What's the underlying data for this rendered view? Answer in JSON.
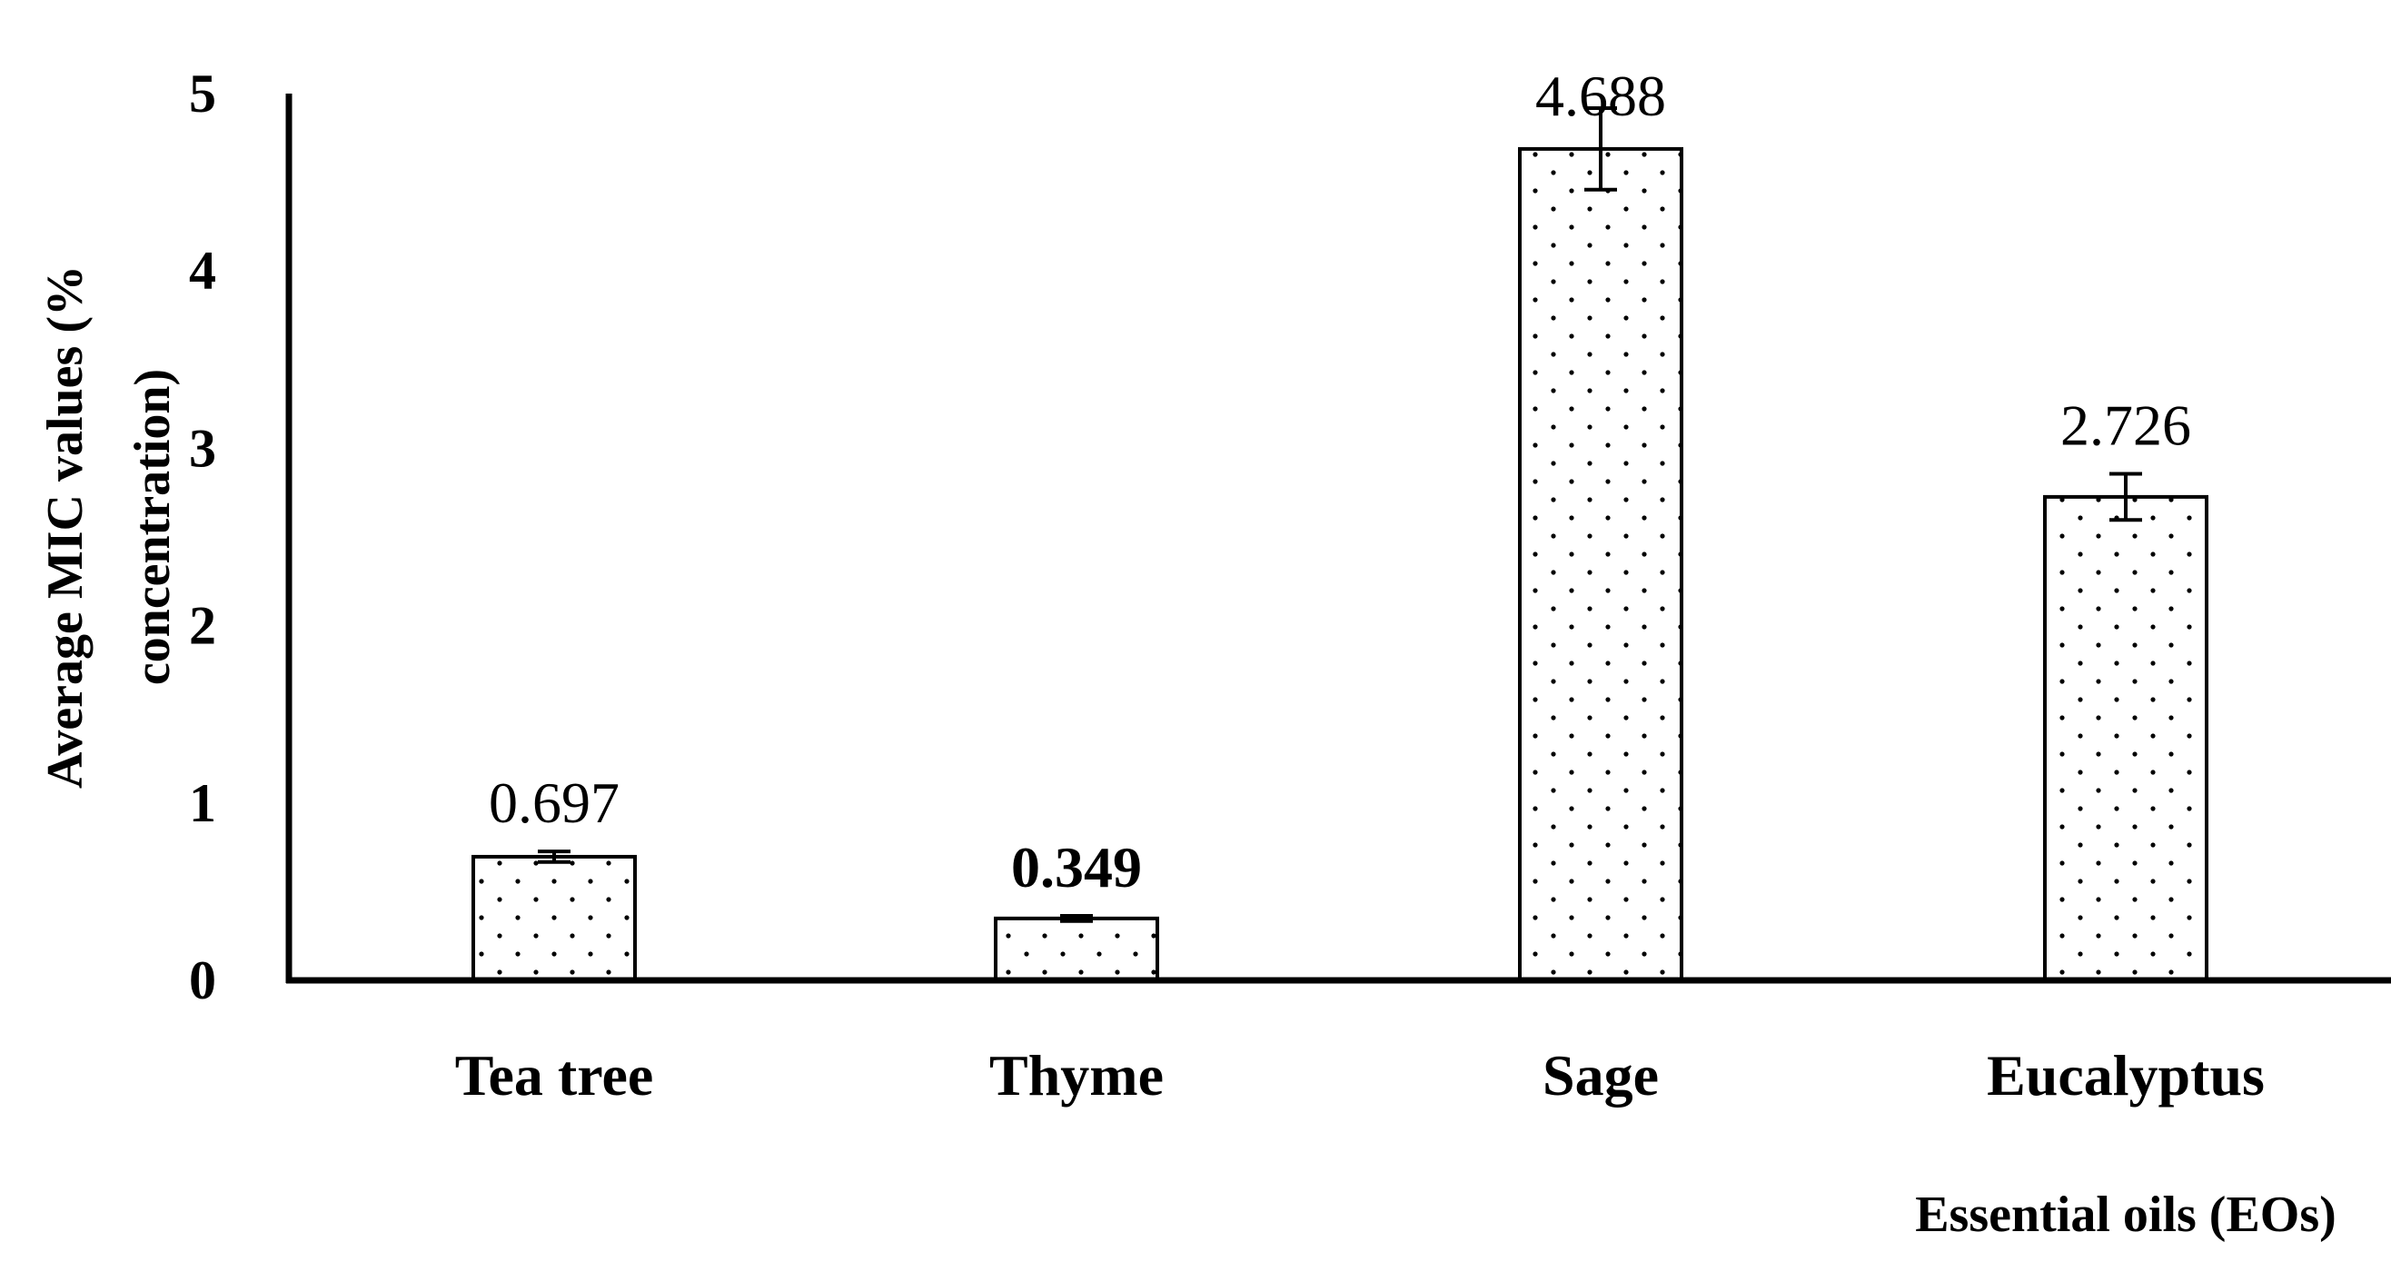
{
  "chart_data": {
    "type": "bar",
    "categories": [
      "Tea tree",
      "Thyme",
      "Sage",
      "Eucalyptus"
    ],
    "values": [
      0.697,
      0.349,
      4.688,
      2.726
    ],
    "errors": [
      0.03,
      0.015,
      0.23,
      0.13
    ],
    "data_labels": [
      "0.697",
      "0.349",
      "4.688",
      "2.726"
    ],
    "data_label_bold": [
      false,
      true,
      false,
      false
    ],
    "ylabel_lines": [
      "Average MIC values (%",
      "concentration)"
    ],
    "xlabel": "Essential oils (EOs)",
    "ylim": [
      0,
      5
    ],
    "yticks": [
      "0",
      "1",
      "2",
      "3",
      "4",
      "5"
    ],
    "bar_fill": "dotted pattern on white",
    "grid": false
  }
}
